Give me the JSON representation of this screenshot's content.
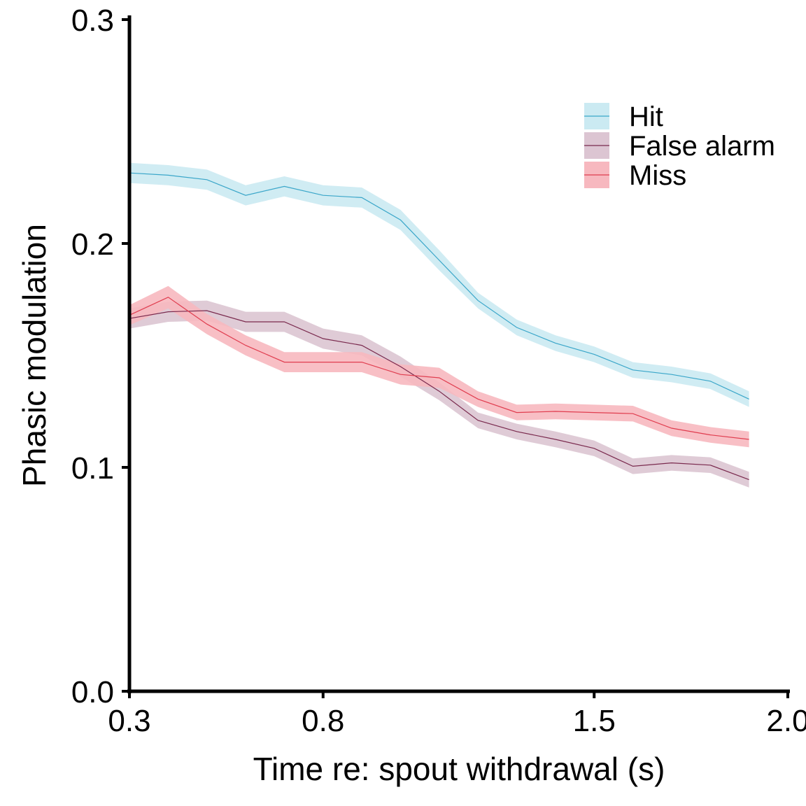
{
  "chart_data": {
    "type": "line",
    "title": "",
    "xlabel": "Time re: spout withdrawal (s)",
    "ylabel": "Phasic modulation",
    "xlim": [
      0.3,
      2.0
    ],
    "ylim": [
      0.0,
      0.3
    ],
    "x_ticks": [
      "0.3",
      "0.8",
      "1.5",
      "2.0"
    ],
    "y_ticks": [
      "0.0",
      "0.1",
      "0.2",
      "0.3"
    ],
    "x": [
      0.3,
      0.4,
      0.5,
      0.6,
      0.7,
      0.8,
      0.9,
      1.0,
      1.1,
      1.2,
      1.3,
      1.4,
      1.5,
      1.6,
      1.7,
      1.8,
      1.9
    ],
    "legend_position": "top-right",
    "grid": false,
    "series": [
      {
        "name": "Hit",
        "color": "#3aa6c9",
        "band_color": "#cbeaf2",
        "values": [
          0.2315,
          0.2305,
          0.2285,
          0.2215,
          0.2255,
          0.2215,
          0.2205,
          0.2105,
          0.1925,
          0.1745,
          0.1625,
          0.1555,
          0.1505,
          0.1435,
          0.1415,
          0.1385,
          0.1305
        ],
        "se": [
          0.0045,
          0.0045,
          0.0045,
          0.0045,
          0.0045,
          0.0045,
          0.0045,
          0.0045,
          0.0045,
          0.0035,
          0.0035,
          0.0035,
          0.0035,
          0.0035,
          0.0035,
          0.0035,
          0.0035
        ]
      },
      {
        "name": "False alarm",
        "color": "#7a2a4e",
        "band_color": "#dcc5d2",
        "values": [
          0.1665,
          0.1695,
          0.17,
          0.165,
          0.165,
          0.1575,
          0.1545,
          0.145,
          0.134,
          0.121,
          0.116,
          0.1125,
          0.1085,
          0.1005,
          0.102,
          0.101,
          0.0945
        ],
        "se": [
          0.0045,
          0.0045,
          0.0045,
          0.0045,
          0.0045,
          0.0045,
          0.0045,
          0.0045,
          0.004,
          0.0035,
          0.0035,
          0.0035,
          0.0035,
          0.0035,
          0.0035,
          0.0035,
          0.0035
        ]
      },
      {
        "name": "Miss",
        "color": "#e03d4f",
        "band_color": "#f7b8bf",
        "values": [
          0.168,
          0.176,
          0.164,
          0.1545,
          0.147,
          0.147,
          0.147,
          0.1415,
          0.14,
          0.1305,
          0.1245,
          0.125,
          0.1245,
          0.124,
          0.1175,
          0.1145,
          0.1125
        ],
        "se": [
          0.0045,
          0.005,
          0.0045,
          0.0045,
          0.0045,
          0.0045,
          0.0045,
          0.0045,
          0.0045,
          0.0035,
          0.0035,
          0.0035,
          0.0035,
          0.0035,
          0.0035,
          0.0035,
          0.0035
        ]
      }
    ]
  }
}
